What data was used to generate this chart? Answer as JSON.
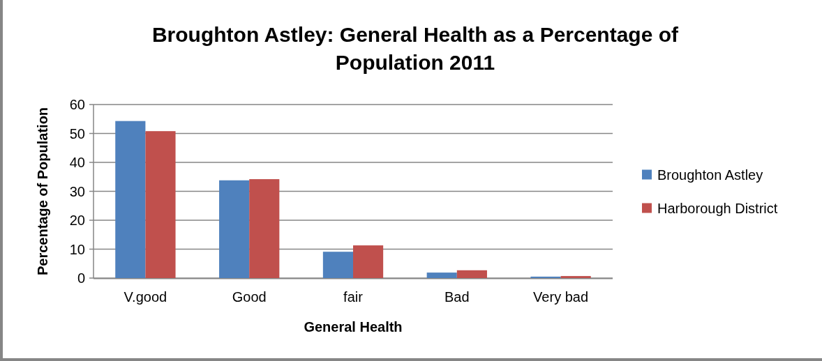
{
  "chart_data": {
    "type": "bar",
    "title": "Broughton Astley: General Health as a Percentage of Population 2011",
    "xlabel": "General Health",
    "ylabel": "Percentage of Population",
    "categories": [
      "V.good",
      "Good",
      "fair",
      "Bad",
      "Very bad"
    ],
    "series": [
      {
        "name": "Broughton Astley",
        "color": "#4f81bd",
        "values": [
          54.3,
          33.8,
          9.1,
          1.9,
          0.5
        ]
      },
      {
        "name": "Harborough District",
        "color": "#c0504d",
        "values": [
          50.8,
          34.2,
          11.3,
          2.7,
          0.7
        ]
      }
    ],
    "ylim": [
      0,
      60
    ],
    "yticks": [
      0,
      10,
      20,
      30,
      40,
      50,
      60
    ],
    "grid": "y",
    "legend": "right"
  }
}
